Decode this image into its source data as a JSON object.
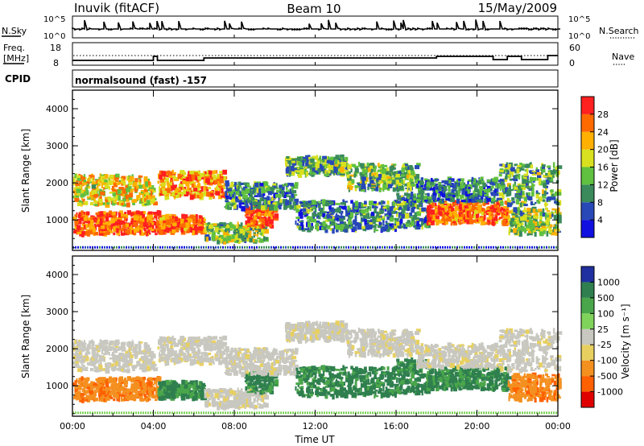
{
  "header": {
    "station": "Inuvik (fitACF)",
    "beam": "Beam 10",
    "date": "15/May/2009"
  },
  "ancillary": {
    "nsky_label": "N.Sky",
    "nsky_ticks": [
      "10^5",
      "10^0"
    ],
    "nsearch_label": "N.Search",
    "nsearch_ticks": [
      "10^5",
      "10^0"
    ],
    "freq_label": "Freq.",
    "freq_unit": "[MHz]",
    "freq_ticks": [
      "18",
      "8"
    ],
    "nave_label": "Nave",
    "nave_ticks": [
      "60",
      "0"
    ],
    "cpid_label": "CPID",
    "cpid_value": "normalsound (fast) -157"
  },
  "colors": {
    "power_scale": [
      "#1010e0",
      "#2848b8",
      "#3a8a5c",
      "#60c040",
      "#d8e020",
      "#ffb000",
      "#ff6a00",
      "#ff2020"
    ],
    "velocity_scale": [
      "#2030a0",
      "#2f7f4f",
      "#4aa64a",
      "#7fd25a",
      "#c8c8c0",
      "#e8d060",
      "#f49020",
      "#ff6000",
      "#e00000"
    ],
    "axis": "#000000"
  },
  "chart_data": [
    {
      "type": "heatmap",
      "name": "power",
      "xlabel": "",
      "ylabel": "Slant Range [km]",
      "x_ticks": [
        "00:00",
        "04:00",
        "08:00",
        "12:00",
        "16:00",
        "20:00",
        "00:00"
      ],
      "xlim_hours": [
        0,
        24
      ],
      "ylim": [
        180,
        4500
      ],
      "y_ticks": [
        1000,
        2000,
        3000,
        4000
      ],
      "colorbar": {
        "label": "Power [dB]",
        "ticks": [
          "4",
          "8",
          "12",
          "16",
          "20",
          "24",
          "28"
        ],
        "range": [
          0,
          30
        ]
      }
    },
    {
      "type": "heatmap",
      "name": "velocity",
      "xlabel": "Time UT",
      "ylabel": "Slant Range [km]",
      "x_ticks": [
        "00:00",
        "04:00",
        "08:00",
        "12:00",
        "16:00",
        "20:00",
        "00:00"
      ],
      "xlim_hours": [
        0,
        24
      ],
      "ylim": [
        180,
        4500
      ],
      "y_ticks": [
        1000,
        2000,
        3000,
        4000
      ],
      "colorbar": {
        "label": "Velocity [m s⁻¹]",
        "ticks": [
          "1000",
          "500",
          "100",
          "25",
          "-25",
          "-100",
          "-500",
          "-1000"
        ]
      }
    }
  ]
}
